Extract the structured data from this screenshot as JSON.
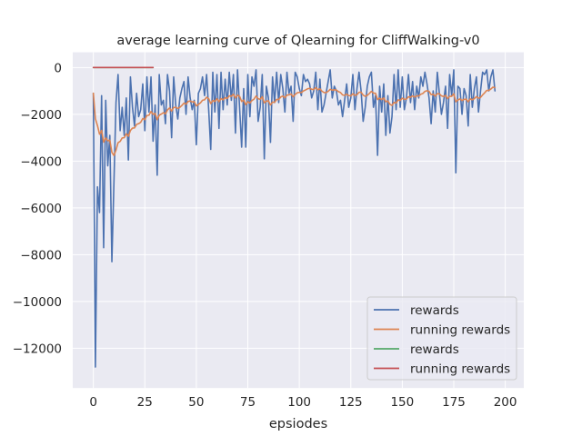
{
  "chart_data": {
    "type": "line",
    "title": "average learning curve of Qlearning for CliffWalking-v0",
    "xlabel": "epsiodes",
    "ylabel": "",
    "xlim": [
      -10,
      209
    ],
    "ylim": [
      -13700,
      650
    ],
    "xticks": [
      0,
      25,
      50,
      75,
      100,
      125,
      150,
      175,
      200
    ],
    "yticks": [
      0,
      -2000,
      -4000,
      -6000,
      -8000,
      -10000,
      -12000
    ],
    "grid": true,
    "legend_position": "lower right",
    "colors": {
      "background": "#eaeaf2",
      "grid": "#ffffff"
    },
    "series": [
      {
        "name": "rewards",
        "color": "#4c72b0",
        "x_start": 0,
        "values": [
          -1100,
          -12800,
          -5100,
          -6200,
          -1200,
          -7700,
          -1400,
          -4200,
          -2900,
          -8300,
          -4900,
          -1500,
          -300,
          -2700,
          -1700,
          -2900,
          -1300,
          -3950,
          -400,
          -1700,
          -2500,
          -1100,
          -2100,
          -1800,
          -700,
          -2700,
          -400,
          -1900,
          -400,
          -3150,
          -1600,
          -4600,
          -300,
          -1600,
          -1400,
          -2400,
          -300,
          -1000,
          -3000,
          -400,
          -1600,
          -2200,
          -1300,
          -900,
          -600,
          -2000,
          -400,
          -1300,
          -1800,
          -1400,
          -3300,
          -1100,
          -900,
          -400,
          -1200,
          -300,
          -1800,
          -3500,
          -200,
          -1900,
          -300,
          -2600,
          -200,
          -1800,
          -500,
          -1600,
          -200,
          -1400,
          -300,
          -2800,
          -100,
          -1700,
          -3400,
          -900,
          -3400,
          -300,
          -2100,
          -400,
          -800,
          -100,
          -2300,
          -1700,
          -300,
          -3900,
          -800,
          -1300,
          -3200,
          -400,
          -1500,
          -200,
          -1500,
          -300,
          -900,
          -1900,
          -200,
          -1100,
          -800,
          -2300,
          -200,
          -400,
          -900,
          -1200,
          -300,
          -600,
          -500,
          -700,
          -1300,
          -1000,
          -200,
          -1800,
          -500,
          -1900,
          -1600,
          -1100,
          -600,
          -100,
          -1300,
          -800,
          -1000,
          -1600,
          -1400,
          -2100,
          -1400,
          -700,
          -1700,
          -1300,
          -300,
          -1800,
          -900,
          -200,
          -1000,
          -2300,
          -1700,
          -800,
          -400,
          -200,
          -1700,
          -1200,
          -3750,
          -800,
          -1900,
          -700,
          -2900,
          -1200,
          -2800,
          -2100,
          -300,
          -1800,
          -100,
          -1700,
          -400,
          -1800,
          -1300,
          -300,
          -1500,
          -600,
          -1800,
          -800,
          -1300,
          -400,
          -800,
          -200,
          -700,
          -1300,
          -2400,
          -1000,
          -1900,
          -200,
          -1100,
          -2000,
          -1500,
          -800,
          -2600,
          -300,
          -1200,
          -100,
          -4500,
          -800,
          -900,
          -2000,
          -900,
          -1200,
          -2500,
          -300,
          -1700,
          -900,
          -400,
          -1900,
          -1000,
          -200,
          -300,
          -100,
          -1000,
          -400,
          -100,
          -1000
        ]
      },
      {
        "name": "running rewards",
        "color": "#dd8452",
        "x_start": 0,
        "values": [
          -1100,
          -2190,
          -2480,
          -2850,
          -2690,
          -3190,
          -3010,
          -3130,
          -3110,
          -3630,
          -3760,
          -3530,
          -3210,
          -3160,
          -3010,
          -3000,
          -2830,
          -2940,
          -2690,
          -2590,
          -2580,
          -2430,
          -2400,
          -2340,
          -2180,
          -2230,
          -2050,
          -2040,
          -1880,
          -2000,
          -1960,
          -2230,
          -2040,
          -1990,
          -1930,
          -1980,
          -1810,
          -1730,
          -1860,
          -1710,
          -1700,
          -1750,
          -1700,
          -1620,
          -1520,
          -1570,
          -1450,
          -1430,
          -1470,
          -1460,
          -1640,
          -1580,
          -1510,
          -1400,
          -1380,
          -1270,
          -1330,
          -1540,
          -1410,
          -1450,
          -1330,
          -1460,
          -1330,
          -1380,
          -1290,
          -1320,
          -1210,
          -1230,
          -1140,
          -1300,
          -1180,
          -1230,
          -1450,
          -1390,
          -1590,
          -1460,
          -1520,
          -1410,
          -1350,
          -1220,
          -1330,
          -1360,
          -1250,
          -1510,
          -1440,
          -1420,
          -1600,
          -1480,
          -1490,
          -1360,
          -1370,
          -1260,
          -1220,
          -1290,
          -1180,
          -1170,
          -1130,
          -1250,
          -1150,
          -1080,
          -1060,
          -1070,
          -1000,
          -960,
          -910,
          -890,
          -930,
          -940,
          -860,
          -950,
          -910,
          -1010,
          -1070,
          -1070,
          -1020,
          -930,
          -970,
          -950,
          -960,
          -1030,
          -1070,
          -1170,
          -1190,
          -1140,
          -1200,
          -1210,
          -1120,
          -1190,
          -1160,
          -1060,
          -1050,
          -1180,
          -1230,
          -1190,
          -1110,
          -1020,
          -1090,
          -1100,
          -1370,
          -1310,
          -1370,
          -1300,
          -1460,
          -1430,
          -1570,
          -1620,
          -1490,
          -1520,
          -1380,
          -1410,
          -1310,
          -1360,
          -1350,
          -1250,
          -1270,
          -1210,
          -1260,
          -1210,
          -1220,
          -1140,
          -1110,
          -1020,
          -990,
          -1020,
          -1160,
          -1140,
          -1220,
          -1120,
          -1120,
          -1210,
          -1240,
          -1190,
          -1330,
          -1230,
          -1230,
          -1120,
          -1460,
          -1390,
          -1340,
          -1410,
          -1360,
          -1350,
          -1460,
          -1340,
          -1380,
          -1330,
          -1240,
          -1310,
          -1280,
          -1170,
          -1080,
          -980,
          -980,
          -920,
          -840,
          -860
        ]
      },
      {
        "name": "rewards",
        "color": "#55a868",
        "x_start": 0,
        "values": [
          0,
          0,
          0,
          0,
          0,
          0,
          0,
          0,
          0,
          0,
          0,
          0,
          0,
          0,
          0,
          0,
          0,
          0,
          0,
          0,
          0,
          0,
          0,
          0,
          0,
          0,
          0,
          0,
          0,
          0
        ]
      },
      {
        "name": "running rewards",
        "color": "#c44e52",
        "x_start": 0,
        "values": [
          0,
          0,
          0,
          0,
          0,
          0,
          0,
          0,
          0,
          0,
          0,
          0,
          0,
          0,
          0,
          0,
          0,
          0,
          0,
          0,
          0,
          0,
          0,
          0,
          0,
          0,
          0,
          0,
          0,
          0
        ]
      }
    ]
  }
}
